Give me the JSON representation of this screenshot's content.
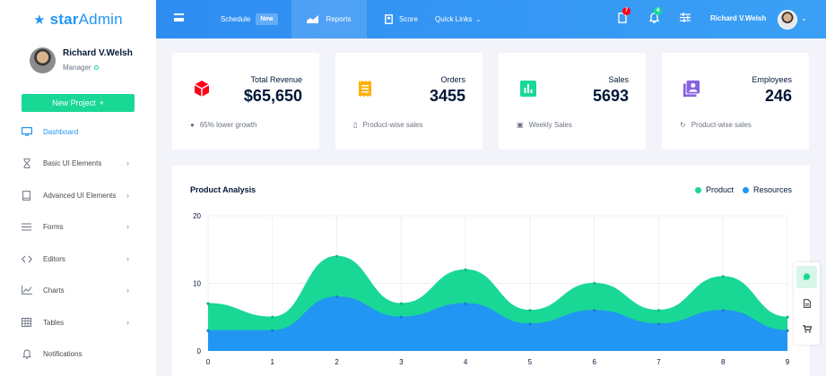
{
  "brand": {
    "name_bold": "star",
    "name_thin": "Admin"
  },
  "profile": {
    "name": "Richard V.Welsh",
    "role": "Manager"
  },
  "sidebar": {
    "new_project_label": "New Project",
    "new_project_icon": "+",
    "items": [
      {
        "label": "Dashboard",
        "icon": "monitor-icon",
        "active": true,
        "has_arrow": false
      },
      {
        "label": "Basic UI Elements",
        "icon": "hourglass-icon",
        "active": false,
        "has_arrow": true
      },
      {
        "label": "Advanced UI Elements",
        "icon": "tablet-icon",
        "active": false,
        "has_arrow": true
      },
      {
        "label": "Forms",
        "icon": "list-icon",
        "active": false,
        "has_arrow": true
      },
      {
        "label": "Editors",
        "icon": "code-icon",
        "active": false,
        "has_arrow": true
      },
      {
        "label": "Charts",
        "icon": "line-chart-icon",
        "active": false,
        "has_arrow": true
      },
      {
        "label": "Tables",
        "icon": "grid-icon",
        "active": false,
        "has_arrow": true
      },
      {
        "label": "Notifications",
        "icon": "bell-icon",
        "active": false,
        "has_arrow": false
      }
    ]
  },
  "topbar": {
    "schedule_label": "Schedule",
    "schedule_badge": "New",
    "reports_label": "Reports",
    "score_label": "Score",
    "quick_links_label": "Quick Links",
    "doc_badge": "7",
    "bell_badge": "4",
    "user_name": "Richard V.Welsh !"
  },
  "cards": [
    {
      "title": "Total Revenue",
      "value": "$65,650",
      "footer": "65% lower growth",
      "icon": "cube-icon",
      "color": "#ff0017",
      "footer_icon": "info-icon"
    },
    {
      "title": "Orders",
      "value": "3455",
      "footer": "Product-wise sales",
      "icon": "receipt-icon",
      "color": "#ffaf00",
      "footer_icon": "bookmark-icon"
    },
    {
      "title": "Sales",
      "value": "5693",
      "footer": "Weekly Sales",
      "icon": "bar-chart-icon",
      "color": "#19d895",
      "footer_icon": "calendar-icon"
    },
    {
      "title": "Employees",
      "value": "246",
      "footer": "Product-wise sales",
      "icon": "contacts-icon",
      "color": "#8862e0",
      "footer_icon": "refresh-icon"
    }
  ],
  "chart": {
    "title": "Product Analysis",
    "legend": [
      {
        "name": "Product",
        "color": "#19d895"
      },
      {
        "name": "Resources",
        "color": "#2196f3"
      }
    ]
  },
  "chart_data": {
    "type": "area",
    "title": "Product Analysis",
    "x": [
      0,
      1,
      2,
      3,
      4,
      5,
      6,
      7,
      8,
      9
    ],
    "series": [
      {
        "name": "Product",
        "values": [
          7,
          5,
          14,
          7,
          12,
          6,
          10,
          6,
          11,
          5
        ],
        "color": "#19d895"
      },
      {
        "name": "Resources",
        "values": [
          3,
          3,
          8,
          5,
          7,
          4,
          6,
          4,
          6,
          3
        ],
        "color": "#2196f3"
      }
    ],
    "xlim": [
      0,
      9
    ],
    "ylim": [
      0,
      20
    ],
    "yticks": [
      0,
      10,
      20
    ],
    "grid": true,
    "legend_position": "top-right"
  }
}
